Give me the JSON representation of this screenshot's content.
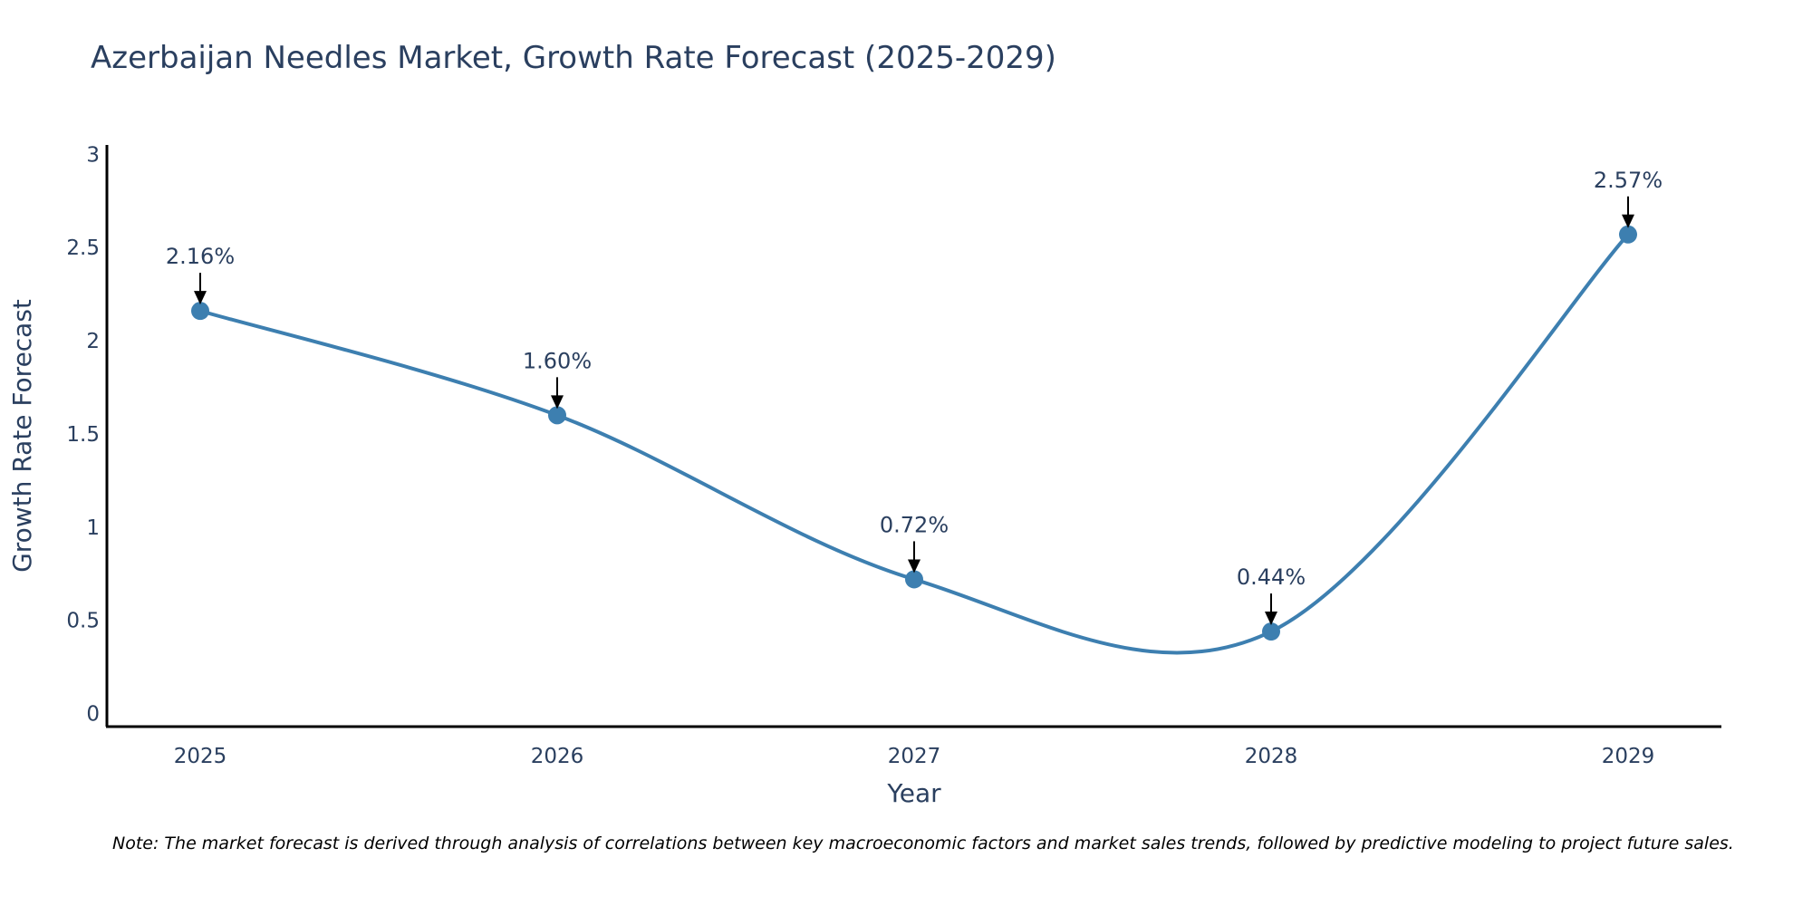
{
  "chart_data": {
    "type": "line",
    "title": "Azerbaijan Needles Market, Growth Rate Forecast (2025-2029)",
    "xlabel": "Year",
    "ylabel": "Growth Rate Forecast",
    "categories": [
      "2025",
      "2026",
      "2027",
      "2028",
      "2029"
    ],
    "values": [
      2.16,
      1.6,
      0.72,
      0.44,
      2.57
    ],
    "data_labels": [
      "2.16%",
      "1.60%",
      "0.72%",
      "0.44%",
      "2.57%"
    ],
    "yticks": [
      0,
      0.5,
      1,
      1.5,
      2,
      2.5,
      3
    ],
    "ytick_labels": [
      "0",
      "0.5",
      "1",
      "1.5",
      "2",
      "2.5",
      "3"
    ],
    "ylim": [
      -0.07,
      3.05
    ],
    "grid": false,
    "smooth": true,
    "line_color": "#3d7fb0",
    "note": "Note: The market forecast is derived through analysis of correlations between key macroeconomic factors and market sales trends, followed by predictive modeling to project future sales."
  }
}
